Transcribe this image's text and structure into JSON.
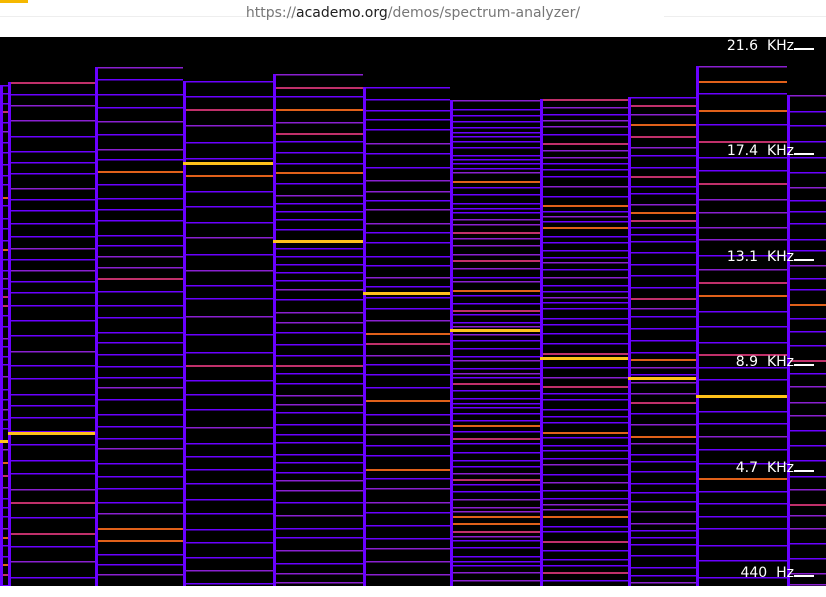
{
  "browser": {
    "url_scheme": "https://",
    "url_host": "academo.org",
    "url_path": "/demos/spectrum-analyzer/"
  },
  "analyzer": {
    "background": "#000000",
    "palette": [
      "#6a00ff",
      "#8a1fd0",
      "#c0306a",
      "#e0601a",
      "#ffc21a"
    ],
    "frequency_labels": [
      {
        "value": "21.6",
        "unit": "KHz"
      },
      {
        "value": "17.4",
        "unit": "KHz"
      },
      {
        "value": "13.1",
        "unit": "KHz"
      },
      {
        "value": "8.9",
        "unit": "KHz"
      },
      {
        "value": "4.7",
        "unit": "KHz"
      },
      {
        "value": "440",
        "unit": "Hz"
      }
    ]
  }
}
